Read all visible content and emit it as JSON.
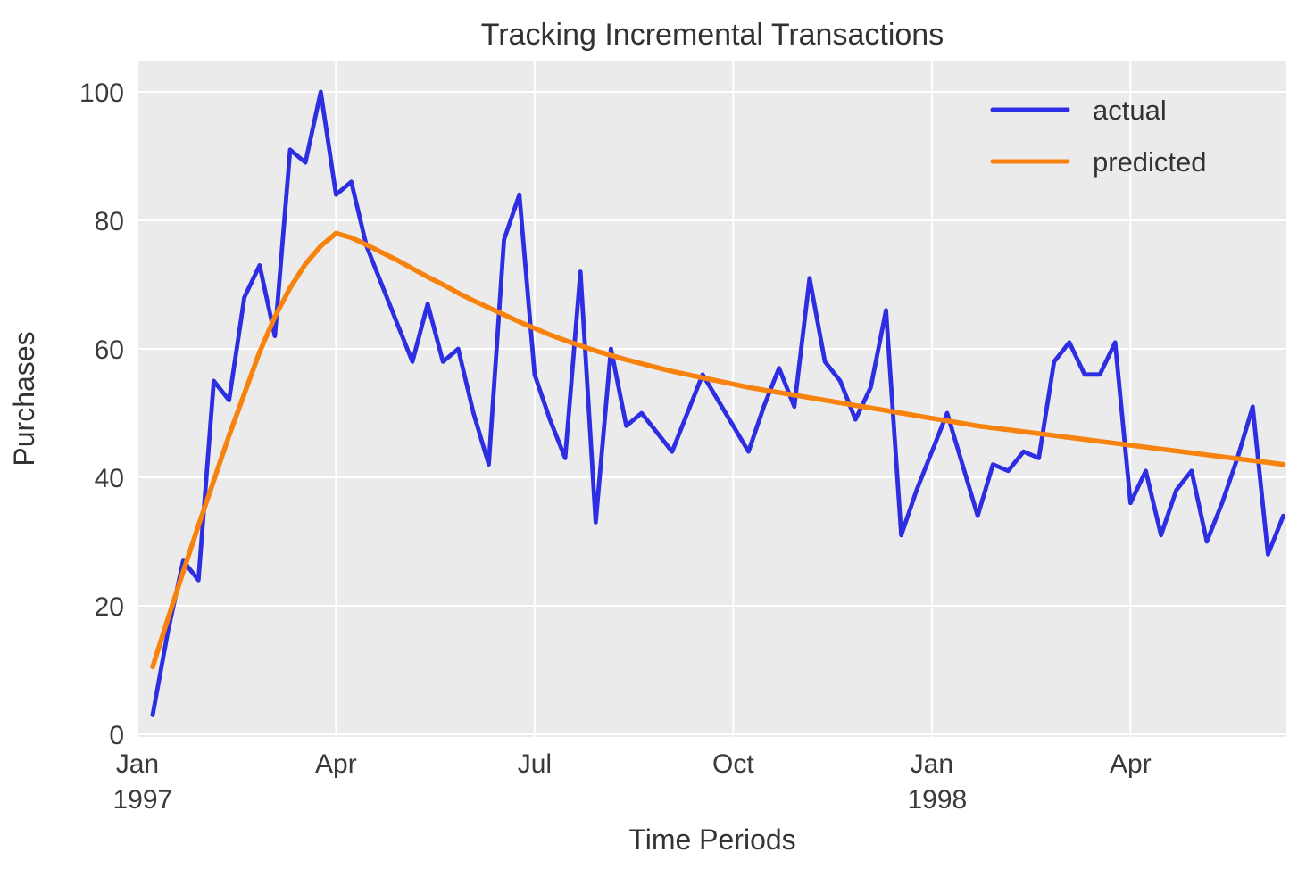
{
  "figure": {
    "title": "Tracking Incremental Transactions",
    "background": "#ffffff",
    "plot_background": "#ebebeb",
    "grid_color": "#ffffff",
    "text_color": "#333333"
  },
  "axes": {
    "xlabel": "Time Periods",
    "ylabel": "Purchases",
    "yticks": [
      0,
      20,
      40,
      60,
      80,
      100
    ],
    "xticks": [
      {
        "label": "Jan",
        "sub": "1997",
        "week": -1
      },
      {
        "label": "Apr",
        "sub": "",
        "week": 12
      },
      {
        "label": "Jul",
        "sub": "",
        "week": 25
      },
      {
        "label": "Oct",
        "sub": "",
        "week": 38
      },
      {
        "label": "Jan",
        "sub": "1998",
        "week": 51
      },
      {
        "label": "Apr",
        "sub": "",
        "week": 64
      }
    ]
  },
  "legend": {
    "position": "upper right",
    "entries": [
      {
        "label": "actual",
        "color": "#2d2de1"
      },
      {
        "label": "predicted",
        "color": "#f8820e"
      }
    ]
  },
  "chart_data": {
    "type": "line",
    "title": "Tracking Incremental Transactions",
    "xlabel": "Time Periods",
    "ylabel": "Purchases",
    "x_unit": "weekly periods from Jan 1997 to mid 1998",
    "ylim": [
      0,
      105
    ],
    "grid": true,
    "legend_position": "upper right",
    "x": [
      0,
      1,
      2,
      3,
      4,
      5,
      6,
      7,
      8,
      9,
      10,
      11,
      12,
      13,
      14,
      15,
      16,
      17,
      18,
      19,
      20,
      21,
      22,
      23,
      24,
      25,
      26,
      27,
      28,
      29,
      30,
      31,
      32,
      33,
      34,
      35,
      36,
      37,
      38,
      39,
      40,
      41,
      42,
      43,
      44,
      45,
      46,
      47,
      48,
      49,
      50,
      51,
      52,
      53,
      54,
      55,
      56,
      57,
      58,
      59,
      60,
      61,
      62,
      63,
      64,
      65,
      66,
      67,
      68,
      69,
      70,
      71,
      72,
      73,
      74
    ],
    "series": [
      {
        "name": "actual",
        "color": "#2d2de1",
        "values": [
          3,
          16,
          27,
          24,
          55,
          52,
          68,
          73,
          62,
          91,
          89,
          100,
          84,
          86,
          76,
          70,
          64,
          58,
          67,
          58,
          60,
          50,
          42,
          77,
          84,
          56,
          49,
          43,
          72,
          33,
          60,
          48,
          50,
          47,
          44,
          50,
          56,
          52,
          48,
          44,
          51,
          57,
          51,
          71,
          58,
          55,
          49,
          54,
          66,
          31,
          38,
          44,
          50,
          42,
          34,
          42,
          41,
          44,
          43,
          58,
          61,
          56,
          56,
          61,
          36,
          41,
          31,
          38,
          41,
          30,
          36,
          43,
          51,
          28,
          34
        ]
      },
      {
        "name": "predicted",
        "color": "#f8820e",
        "values": [
          10.5,
          18,
          25.3,
          32.5,
          39.5,
          46.5,
          53,
          59.5,
          65,
          69.5,
          73.2,
          76,
          78,
          77.3,
          76.2,
          75,
          73.8,
          72.5,
          71.2,
          70,
          68.7,
          67.5,
          66.4,
          65.3,
          64.2,
          63.2,
          62.2,
          61.3,
          60.5,
          59.7,
          59,
          58.3,
          57.7,
          57.1,
          56.5,
          56,
          55.5,
          55,
          54.5,
          54,
          53.6,
          53.2,
          52.8,
          52.4,
          52,
          51.6,
          51.2,
          50.8,
          50.4,
          50,
          49.6,
          49.2,
          48.8,
          48.4,
          48,
          47.7,
          47.4,
          47.1,
          46.8,
          46.5,
          46.2,
          45.9,
          45.6,
          45.3,
          45,
          44.7,
          44.4,
          44.1,
          43.8,
          43.5,
          43.2,
          42.9,
          42.6,
          42.3,
          42
        ]
      }
    ]
  }
}
